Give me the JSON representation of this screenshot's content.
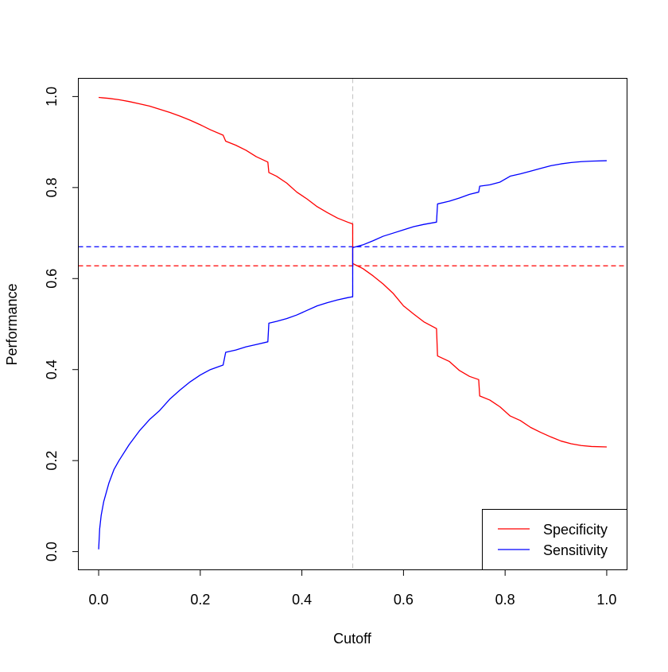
{
  "chart_data": {
    "type": "line",
    "title": "",
    "xlabel": "Cutoff",
    "ylabel": "Performance",
    "xlim": [
      -0.04,
      1.04
    ],
    "ylim": [
      -0.04,
      1.04
    ],
    "x_ticks": [
      0.0,
      0.2,
      0.4,
      0.6,
      0.8,
      1.0
    ],
    "x_tick_labels": [
      "0.0",
      "0.2",
      "0.4",
      "0.6",
      "0.8",
      "1.0"
    ],
    "y_ticks": [
      0.0,
      0.2,
      0.4,
      0.6,
      0.8,
      1.0
    ],
    "y_tick_labels": [
      "0.0",
      "0.2",
      "0.4",
      "0.6",
      "0.8",
      "1.0"
    ],
    "grid": false,
    "legend": {
      "position": "bottom-right",
      "entries": [
        {
          "label": "Specificity",
          "color": "#ff0000"
        },
        {
          "label": "Sensitivity",
          "color": "#0000ff"
        }
      ]
    },
    "series": [
      {
        "name": "Specificity",
        "color": "#ff0000",
        "points": [
          [
            0.0,
            0.998
          ],
          [
            0.02,
            0.996
          ],
          [
            0.04,
            0.993
          ],
          [
            0.06,
            0.989
          ],
          [
            0.08,
            0.984
          ],
          [
            0.1,
            0.979
          ],
          [
            0.12,
            0.972
          ],
          [
            0.14,
            0.965
          ],
          [
            0.16,
            0.957
          ],
          [
            0.18,
            0.948
          ],
          [
            0.2,
            0.938
          ],
          [
            0.22,
            0.927
          ],
          [
            0.245,
            0.915
          ],
          [
            0.25,
            0.902
          ],
          [
            0.27,
            0.893
          ],
          [
            0.29,
            0.882
          ],
          [
            0.31,
            0.868
          ],
          [
            0.333,
            0.856
          ],
          [
            0.335,
            0.833
          ],
          [
            0.35,
            0.825
          ],
          [
            0.37,
            0.81
          ],
          [
            0.39,
            0.79
          ],
          [
            0.41,
            0.775
          ],
          [
            0.43,
            0.758
          ],
          [
            0.45,
            0.745
          ],
          [
            0.47,
            0.733
          ],
          [
            0.49,
            0.724
          ],
          [
            0.5,
            0.72
          ],
          [
            0.5,
            0.633
          ],
          [
            0.52,
            0.622
          ],
          [
            0.54,
            0.606
          ],
          [
            0.56,
            0.588
          ],
          [
            0.58,
            0.567
          ],
          [
            0.6,
            0.54
          ],
          [
            0.62,
            0.522
          ],
          [
            0.64,
            0.505
          ],
          [
            0.665,
            0.49
          ],
          [
            0.667,
            0.43
          ],
          [
            0.69,
            0.418
          ],
          [
            0.71,
            0.398
          ],
          [
            0.73,
            0.385
          ],
          [
            0.748,
            0.378
          ],
          [
            0.75,
            0.342
          ],
          [
            0.77,
            0.333
          ],
          [
            0.79,
            0.318
          ],
          [
            0.81,
            0.298
          ],
          [
            0.83,
            0.288
          ],
          [
            0.85,
            0.273
          ],
          [
            0.87,
            0.262
          ],
          [
            0.89,
            0.252
          ],
          [
            0.91,
            0.243
          ],
          [
            0.93,
            0.237
          ],
          [
            0.95,
            0.233
          ],
          [
            0.97,
            0.231
          ],
          [
            1.0,
            0.23
          ]
        ]
      },
      {
        "name": "Sensitivity",
        "color": "#0000ff",
        "points": [
          [
            0.0,
            0.005
          ],
          [
            0.002,
            0.05
          ],
          [
            0.005,
            0.08
          ],
          [
            0.01,
            0.11
          ],
          [
            0.02,
            0.15
          ],
          [
            0.03,
            0.18
          ],
          [
            0.04,
            0.2
          ],
          [
            0.06,
            0.235
          ],
          [
            0.08,
            0.265
          ],
          [
            0.1,
            0.29
          ],
          [
            0.12,
            0.31
          ],
          [
            0.14,
            0.335
          ],
          [
            0.16,
            0.355
          ],
          [
            0.18,
            0.373
          ],
          [
            0.2,
            0.388
          ],
          [
            0.22,
            0.4
          ],
          [
            0.245,
            0.41
          ],
          [
            0.25,
            0.438
          ],
          [
            0.27,
            0.443
          ],
          [
            0.29,
            0.45
          ],
          [
            0.31,
            0.455
          ],
          [
            0.333,
            0.461
          ],
          [
            0.335,
            0.502
          ],
          [
            0.35,
            0.506
          ],
          [
            0.37,
            0.512
          ],
          [
            0.39,
            0.52
          ],
          [
            0.41,
            0.53
          ],
          [
            0.43,
            0.54
          ],
          [
            0.45,
            0.547
          ],
          [
            0.47,
            0.553
          ],
          [
            0.49,
            0.558
          ],
          [
            0.5,
            0.56
          ],
          [
            0.5,
            0.668
          ],
          [
            0.52,
            0.674
          ],
          [
            0.54,
            0.683
          ],
          [
            0.56,
            0.693
          ],
          [
            0.58,
            0.7
          ],
          [
            0.6,
            0.707
          ],
          [
            0.62,
            0.714
          ],
          [
            0.64,
            0.719
          ],
          [
            0.665,
            0.724
          ],
          [
            0.667,
            0.764
          ],
          [
            0.69,
            0.77
          ],
          [
            0.71,
            0.777
          ],
          [
            0.73,
            0.785
          ],
          [
            0.748,
            0.79
          ],
          [
            0.75,
            0.803
          ],
          [
            0.77,
            0.806
          ],
          [
            0.79,
            0.812
          ],
          [
            0.81,
            0.825
          ],
          [
            0.83,
            0.83
          ],
          [
            0.85,
            0.836
          ],
          [
            0.87,
            0.842
          ],
          [
            0.89,
            0.848
          ],
          [
            0.91,
            0.852
          ],
          [
            0.93,
            0.855
          ],
          [
            0.95,
            0.857
          ],
          [
            0.97,
            0.858
          ],
          [
            1.0,
            0.859
          ]
        ]
      }
    ],
    "reference_lines": [
      {
        "orientation": "vertical",
        "value": 0.5,
        "color": "#c8c8c8",
        "style": "dashed"
      },
      {
        "orientation": "horizontal",
        "value": 0.67,
        "color": "#0000ff",
        "style": "dashed"
      },
      {
        "orientation": "horizontal",
        "value": 0.628,
        "color": "#ff0000",
        "style": "dashed"
      }
    ]
  }
}
